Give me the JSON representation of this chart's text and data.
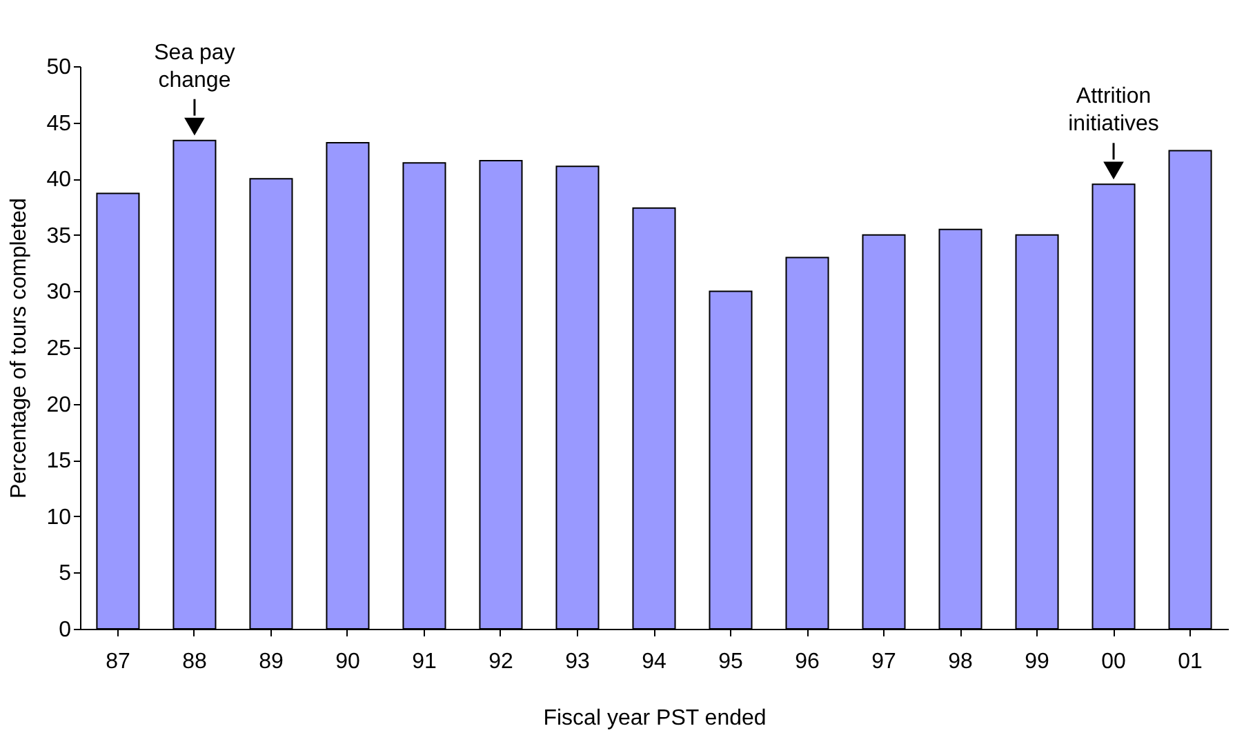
{
  "chart_data": {
    "type": "bar",
    "xlabel": "Fiscal year PST ended",
    "ylabel": "Percentage of tours completed",
    "categories": [
      "87",
      "88",
      "89",
      "90",
      "91",
      "92",
      "93",
      "94",
      "95",
      "96",
      "97",
      "98",
      "99",
      "00",
      "01"
    ],
    "values": [
      38.7,
      43.4,
      40,
      43.2,
      41.4,
      41.6,
      41.1,
      37.4,
      30,
      33,
      35,
      35.5,
      35,
      39.5,
      42.5
    ],
    "color": "#9999ff",
    "ylim": [
      0,
      50
    ],
    "yticks": [
      0,
      5,
      10,
      15,
      20,
      25,
      30,
      35,
      40,
      45,
      50
    ],
    "grid": false,
    "annotations": [
      {
        "text": "Sea pay change",
        "x": "88",
        "y": 43.4
      },
      {
        "text": "Attrition initiatives",
        "x": "00",
        "y": 39.5
      }
    ]
  }
}
